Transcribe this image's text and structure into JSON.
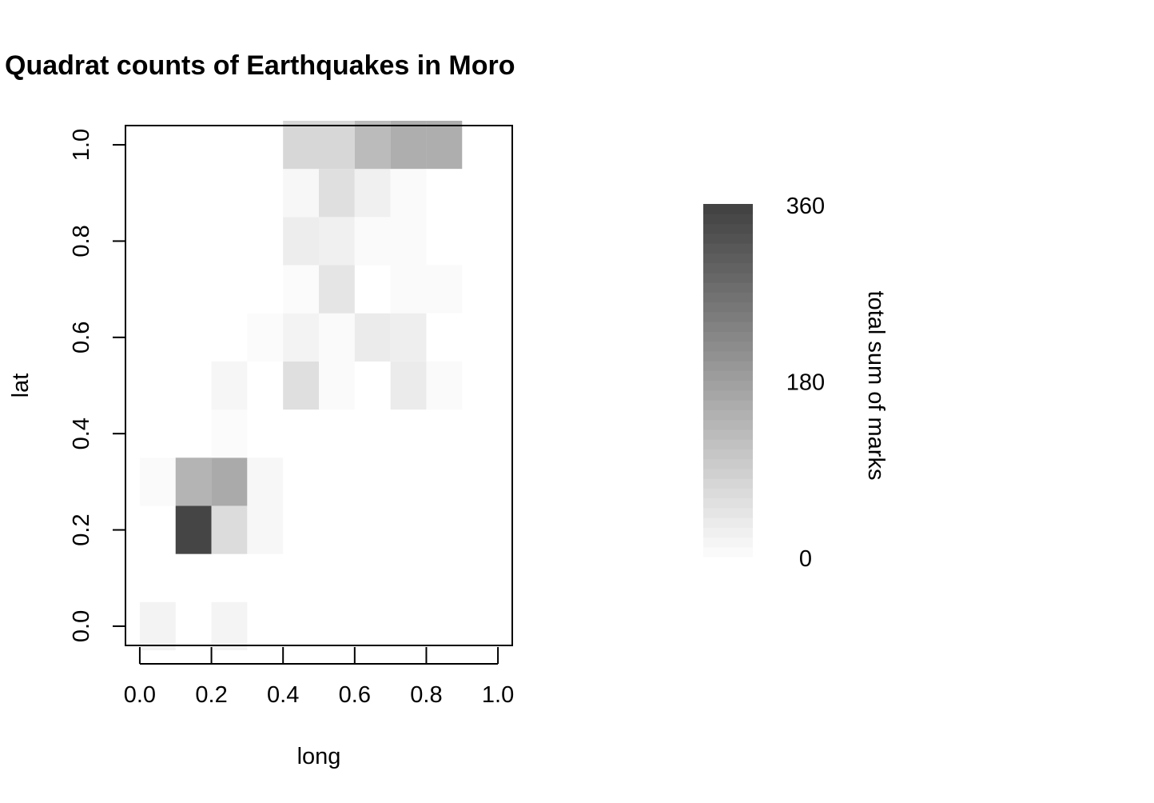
{
  "chart_data": {
    "type": "heatmap",
    "title": "Quadrat counts of Earthquakes in Moro",
    "xlabel": "long",
    "ylabel": "lat",
    "xlim": [
      -0.04,
      1.04
    ],
    "ylim": [
      -0.04,
      1.04
    ],
    "x_ticks": [
      "0.0",
      "0.2",
      "0.4",
      "0.6",
      "0.8",
      "1.0"
    ],
    "y_ticks": [
      "0.0",
      "0.2",
      "0.4",
      "0.6",
      "0.8",
      "1.0"
    ],
    "cell_size": 0.1,
    "value_range": [
      0,
      360
    ],
    "color_low": "#fdfdfd",
    "color_high": "#404040",
    "cells": [
      {
        "x": 0.0,
        "y": -0.05,
        "value": 20
      },
      {
        "x": 0.2,
        "y": -0.05,
        "value": 18
      },
      {
        "x": 0.1,
        "y": 0.15,
        "value": 350
      },
      {
        "x": 0.2,
        "y": 0.15,
        "value": 62
      },
      {
        "x": 0.3,
        "y": 0.15,
        "value": 12
      },
      {
        "x": 0.0,
        "y": 0.25,
        "value": 5
      },
      {
        "x": 0.1,
        "y": 0.25,
        "value": 140
      },
      {
        "x": 0.2,
        "y": 0.25,
        "value": 158
      },
      {
        "x": 0.3,
        "y": 0.25,
        "value": 12
      },
      {
        "x": 0.2,
        "y": 0.35,
        "value": 4
      },
      {
        "x": 0.2,
        "y": 0.45,
        "value": 13
      },
      {
        "x": 0.4,
        "y": 0.45,
        "value": 58
      },
      {
        "x": 0.5,
        "y": 0.45,
        "value": 6
      },
      {
        "x": 0.7,
        "y": 0.45,
        "value": 35
      },
      {
        "x": 0.8,
        "y": 0.45,
        "value": 5
      },
      {
        "x": 0.3,
        "y": 0.55,
        "value": 4
      },
      {
        "x": 0.4,
        "y": 0.55,
        "value": 20
      },
      {
        "x": 0.5,
        "y": 0.55,
        "value": 5
      },
      {
        "x": 0.6,
        "y": 0.55,
        "value": 35
      },
      {
        "x": 0.7,
        "y": 0.55,
        "value": 28
      },
      {
        "x": 0.4,
        "y": 0.65,
        "value": 4
      },
      {
        "x": 0.5,
        "y": 0.65,
        "value": 45
      },
      {
        "x": 0.7,
        "y": 0.65,
        "value": 5
      },
      {
        "x": 0.8,
        "y": 0.65,
        "value": 5
      },
      {
        "x": 0.4,
        "y": 0.75,
        "value": 30
      },
      {
        "x": 0.5,
        "y": 0.75,
        "value": 25
      },
      {
        "x": 0.6,
        "y": 0.75,
        "value": 6
      },
      {
        "x": 0.7,
        "y": 0.75,
        "value": 6
      },
      {
        "x": 0.4,
        "y": 0.85,
        "value": 12
      },
      {
        "x": 0.5,
        "y": 0.85,
        "value": 58
      },
      {
        "x": 0.6,
        "y": 0.85,
        "value": 25
      },
      {
        "x": 0.7,
        "y": 0.85,
        "value": 5
      },
      {
        "x": 0.4,
        "y": 0.95,
        "value": 72
      },
      {
        "x": 0.5,
        "y": 0.95,
        "value": 72
      },
      {
        "x": 0.6,
        "y": 0.95,
        "value": 125
      },
      {
        "x": 0.7,
        "y": 0.95,
        "value": 150
      },
      {
        "x": 0.8,
        "y": 0.95,
        "value": 150
      }
    ],
    "legend": {
      "label": "total sum of marks",
      "ticks": [
        "0",
        "180",
        "360"
      ],
      "tick_values": [
        0,
        180,
        360
      ]
    }
  }
}
